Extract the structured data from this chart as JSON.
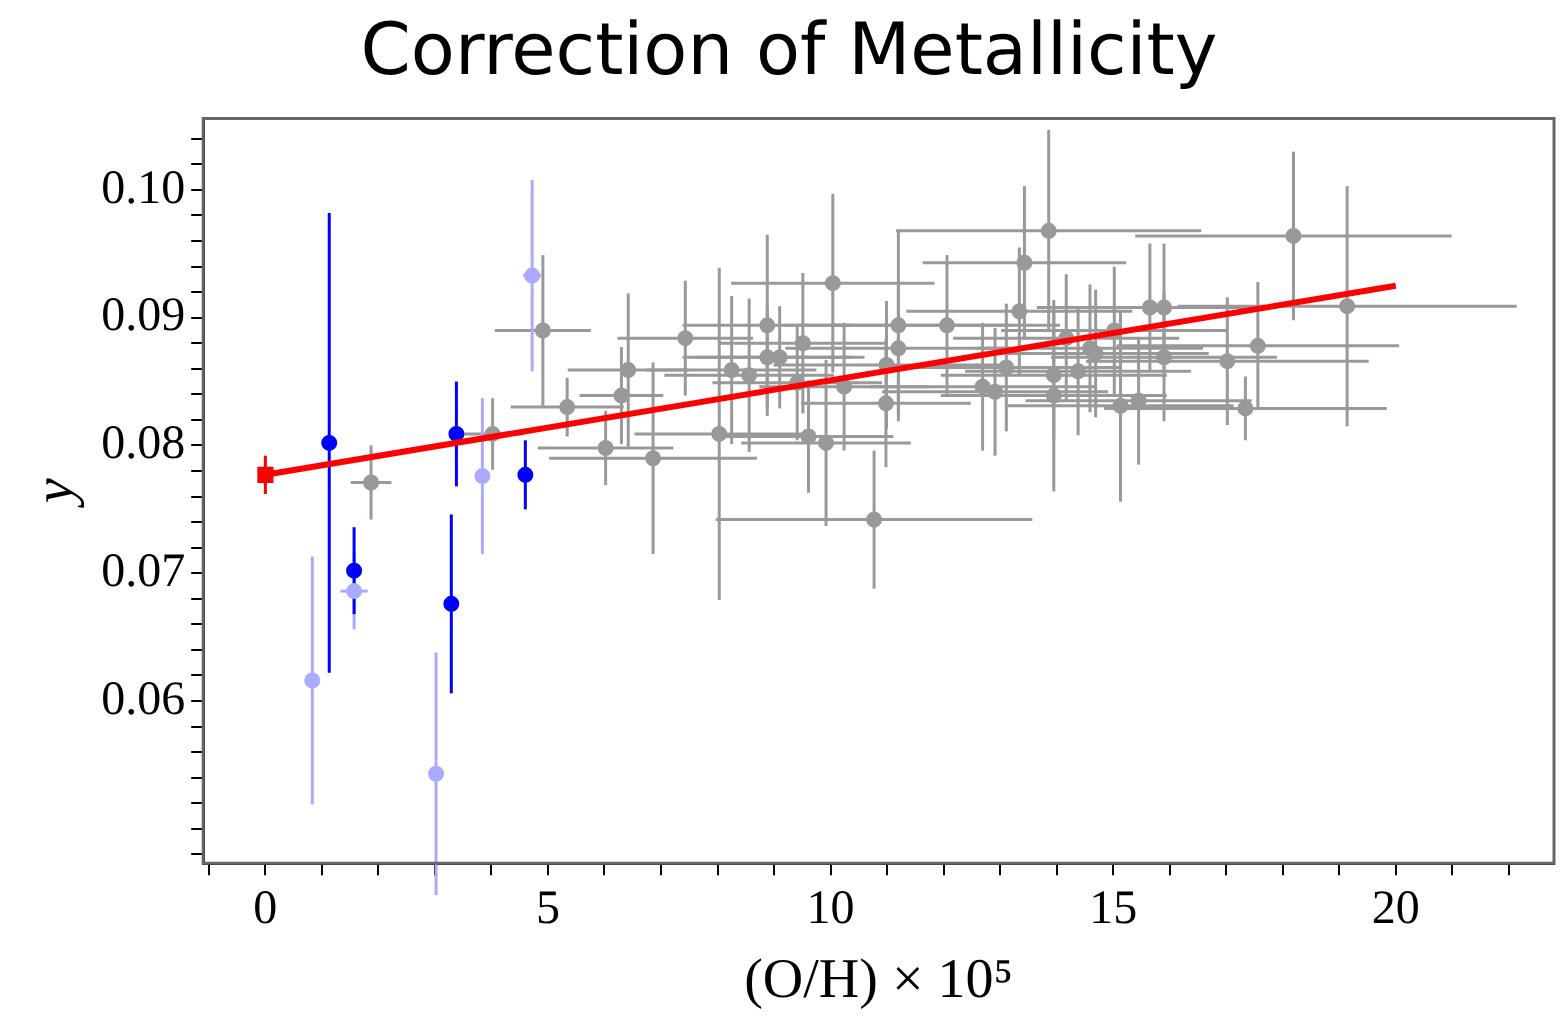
{
  "chart_data": {
    "type": "scatter",
    "title": "Correction of Metallicity",
    "xlabel": "(O/H) × 10⁵",
    "ylabel": "y",
    "xlim": [
      -1.1,
      22.8
    ],
    "ylim": [
      0.0473,
      0.1056
    ],
    "xticks": [
      0,
      5,
      10,
      15,
      20,
      {
        "value": -1,
        "label": null
      },
      {
        "value": 1,
        "label": null
      },
      {
        "value": 2,
        "label": null
      },
      {
        "value": 3,
        "label": null
      },
      {
        "value": 4,
        "label": null
      },
      {
        "value": 6,
        "label": null
      },
      {
        "value": 7,
        "label": null
      },
      {
        "value": 8,
        "label": null
      },
      {
        "value": 9,
        "label": null
      },
      {
        "value": 11,
        "label": null
      },
      {
        "value": 12,
        "label": null
      },
      {
        "value": 13,
        "label": null
      },
      {
        "value": 14,
        "label": null
      },
      {
        "value": 16,
        "label": null
      },
      {
        "value": 17,
        "label": null
      },
      {
        "value": 18,
        "label": null
      },
      {
        "value": 19,
        "label": null
      },
      {
        "value": 21,
        "label": null
      },
      {
        "value": 22,
        "label": null
      }
    ],
    "yticks": [
      0.06,
      0.07,
      0.08,
      0.09,
      {
        "value": 0.1,
        "label": "0.10"
      },
      {
        "value": 0.048,
        "label": null
      },
      {
        "value": 0.05,
        "label": null
      },
      {
        "value": 0.052,
        "label": null
      },
      {
        "value": 0.054,
        "label": null
      },
      {
        "value": 0.056,
        "label": null
      },
      {
        "value": 0.058,
        "label": null
      },
      {
        "value": 0.062,
        "label": null
      },
      {
        "value": 0.064,
        "label": null
      },
      {
        "value": 0.066,
        "label": null
      },
      {
        "value": 0.068,
        "label": null
      },
      {
        "value": 0.072,
        "label": null
      },
      {
        "value": 0.074,
        "label": null
      },
      {
        "value": 0.076,
        "label": null
      },
      {
        "value": 0.078,
        "label": null
      },
      {
        "value": 0.082,
        "label": null
      },
      {
        "value": 0.084,
        "label": null
      },
      {
        "value": 0.086,
        "label": null
      },
      {
        "value": 0.088,
        "label": null
      },
      {
        "value": 0.092,
        "label": null
      },
      {
        "value": 0.094,
        "label": null
      },
      {
        "value": 0.096,
        "label": null
      },
      {
        "value": 0.098,
        "label": null
      },
      {
        "value": 0.102,
        "label": null
      },
      {
        "value": 0.104,
        "label": null
      }
    ],
    "grid": false,
    "legend": false,
    "series": [
      {
        "marker": "circle",
        "color": "#999999",
        "x": [
          1.87,
          4.02,
          4.91,
          5.34,
          6.02,
          6.3,
          6.42,
          6.86,
          7.43,
          8.03,
          8.25,
          8.56,
          8.88,
          8.88,
          9.1,
          9.41,
          9.51,
          9.61,
          10.04,
          9.92,
          10.24,
          10.77,
          10.98,
          13.86,
          13.43,
          11.2,
          11.2,
          10.99,
          12.06,
          12.69,
          12.91,
          13.11,
          13.34,
          13.95,
          13.95,
          14.17,
          14.38,
          14.59,
          14.69,
          15.02,
          15.13,
          15.45,
          15.65,
          15.9,
          15.9,
          18.19,
          19.14,
          17.56,
          17.02,
          17.34
        ],
        "values": [
          0.0771,
          0.0809,
          0.089,
          0.083,
          0.0798,
          0.0839,
          0.0859,
          0.079,
          0.0884,
          0.0809,
          0.0859,
          0.0855,
          0.0894,
          0.0869,
          0.0869,
          0.0849,
          0.088,
          0.0807,
          0.0927,
          0.0802,
          0.0846,
          0.0742,
          0.0833,
          0.0968,
          0.0943,
          0.0894,
          0.0876,
          0.0863,
          0.0894,
          0.0846,
          0.0842,
          0.0861,
          0.0905,
          0.0855,
          0.0839,
          0.0884,
          0.0858,
          0.0876,
          0.0872,
          0.089,
          0.0831,
          0.0835,
          0.0908,
          0.0908,
          0.0869,
          0.0964,
          0.0909,
          0.0878,
          0.0866,
          0.0829
        ],
        "errors": [
          0.0029,
          0.0028,
          0.0059,
          0.0023,
          0.0029,
          0.0038,
          0.006,
          0.0075,
          0.0045,
          0.013,
          0.0058,
          0.006,
          0.0071,
          0.004,
          0.004,
          0.0045,
          0.0055,
          0.0044,
          0.007,
          0.0065,
          0.005,
          0.0054,
          0.005,
          0.0079,
          0.006,
          0.0075,
          0.005,
          0.005,
          0.0055,
          0.005,
          0.005,
          0.005,
          0.005,
          0.005,
          0.0075,
          0.005,
          0.005,
          0.005,
          0.005,
          0.005,
          0.0075,
          0.005,
          0.005,
          0.005,
          0.005,
          0.0066,
          0.0094,
          0.005,
          0.005,
          0.0025
        ],
        "xerrors": [
          0.36,
          0.55,
          0.85,
          1.0,
          1.2,
          0.74,
          1.07,
          1.84,
          1.2,
          1.5,
          1.5,
          1.5,
          1.5,
          1.5,
          1.5,
          1.5,
          1.5,
          1.5,
          1.8,
          1.5,
          1.5,
          2.8,
          1.5,
          2.7,
          1.8,
          2.0,
          2.0,
          2.0,
          2.0,
          2.0,
          2.0,
          2.0,
          2.0,
          2.0,
          2.0,
          2.0,
          2.0,
          2.0,
          2.0,
          2.0,
          2.0,
          2.0,
          2.0,
          2.0,
          2.0,
          2.8,
          3.0,
          2.5,
          2.5,
          2.5
        ]
      },
      {
        "marker": "circle",
        "color": "#aaaaff",
        "x": [
          0.83,
          1.57,
          3.02,
          3.84,
          4.72
        ],
        "values": [
          0.0616,
          0.0686,
          0.0543,
          0.0776,
          0.0933
        ],
        "errors": [
          0.0097,
          0.003,
          0.0095,
          0.0061,
          0.0075
        ],
        "xerrors": [
          null,
          0.24,
          null,
          null,
          0.16
        ]
      },
      {
        "marker": "circle",
        "color": "#0000ff",
        "x": [
          1.13,
          1.57,
          3.38,
          3.29,
          4.6
        ],
        "values": [
          0.0802,
          0.0702,
          0.0809,
          0.0676,
          0.0777
        ],
        "errors": [
          0.018,
          0.0034,
          0.0041,
          0.007,
          0.0027
        ]
      },
      {
        "type": "line",
        "marker": "none",
        "color": "#ff0000",
        "x": [
          0,
          20
        ],
        "values": [
          0.0777,
          0.0925
        ]
      },
      {
        "marker": "square",
        "color": "#ff0000",
        "x": [
          0
        ],
        "values": [
          0.0777
        ],
        "errors": [
          0.0015
        ]
      }
    ]
  }
}
